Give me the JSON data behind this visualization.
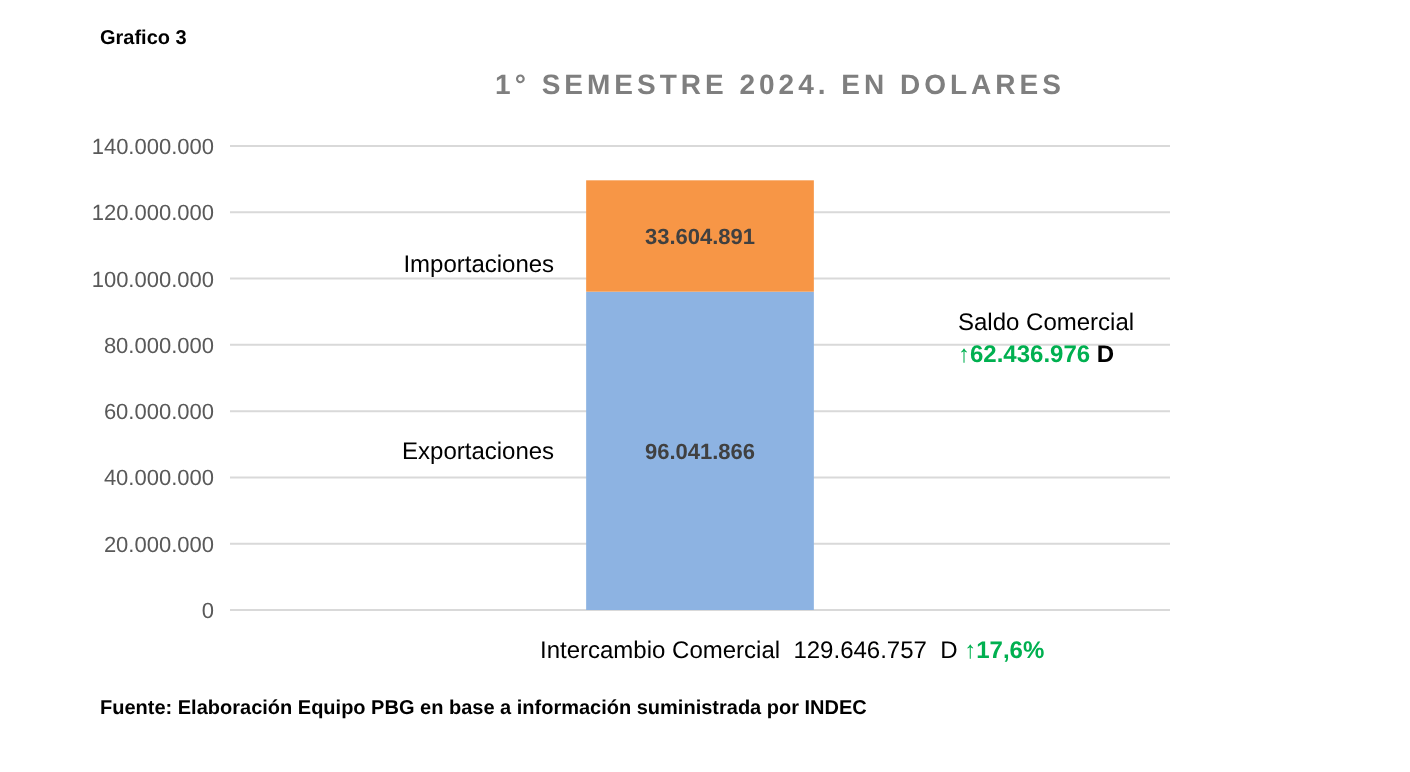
{
  "chart_data": {
    "type": "bar",
    "stacked": true,
    "title": "1° SEMESTRE 2024. EN DOLARES",
    "categories": [
      null
    ],
    "series": [
      {
        "name": "Exportaciones",
        "color": "#8db3e2",
        "values": [
          96041866
        ],
        "value_labels": [
          "96.041.866"
        ]
      },
      {
        "name": "Importaciones",
        "color": "#f79646",
        "values": [
          33604891
        ],
        "value_labels": [
          "33.604.891"
        ]
      }
    ],
    "ylim": [
      0,
      140000000
    ],
    "yticks": [
      {
        "value": 0,
        "label": "0"
      },
      {
        "value": 20000000,
        "label": "20.000.000"
      },
      {
        "value": 40000000,
        "label": "40.000.000"
      },
      {
        "value": 60000000,
        "label": "60.000.000"
      },
      {
        "value": 80000000,
        "label": "80.000.000"
      },
      {
        "value": 100000000,
        "label": "100.000.000"
      },
      {
        "value": 120000000,
        "label": "120.000.000"
      },
      {
        "value": 140000000,
        "label": "140.000.000"
      }
    ],
    "grid": "y",
    "annotations": [
      "Grafico 3",
      "Saldo Comercial",
      "↑62.436.976",
      "D",
      "Intercambio Comercial  129.646.757  D",
      "↑17,6%",
      "Fuente: Elaboración Equipo PBG en base a información suministrada por INDEC"
    ]
  }
}
